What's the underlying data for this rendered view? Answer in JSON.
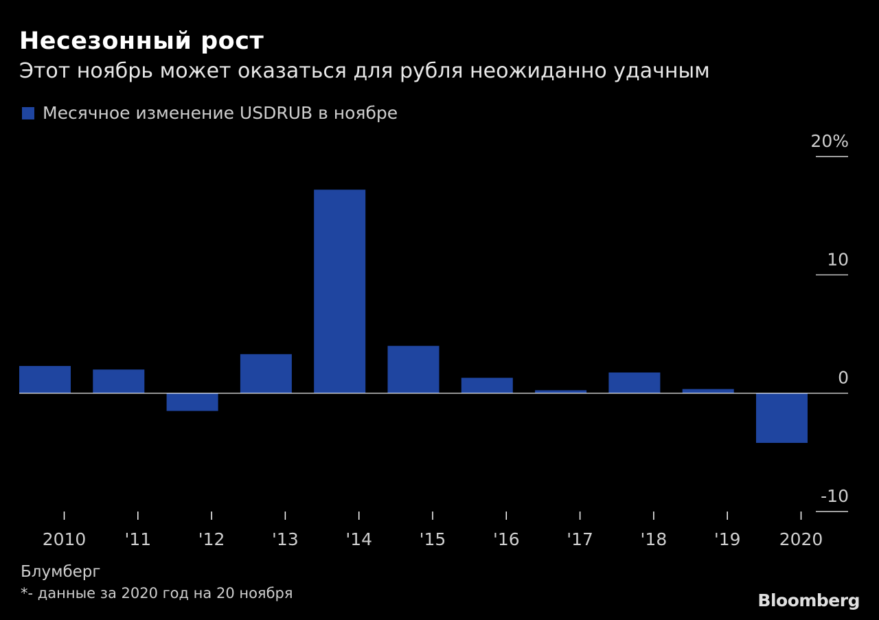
{
  "chart_data": {
    "type": "bar",
    "title": "Несезонный рост",
    "subtitle": "Этот ноябрь может оказаться для рубля неожиданно удачным",
    "legend": "Месячное изменение USDRUB в ноябре",
    "categories": [
      "2010",
      "'11",
      "'12",
      "'13",
      "'14",
      "'15",
      "'16",
      "'17",
      "'18",
      "'19",
      "2020"
    ],
    "series": [
      {
        "name": "Месячное изменение USDRUB в ноябре",
        "values": [
          2.3,
          2.0,
          -1.5,
          3.3,
          17.2,
          4.0,
          1.3,
          0.25,
          1.75,
          0.35,
          -4.2
        ]
      }
    ],
    "ylim": [
      -10,
      20
    ],
    "yticks": [
      {
        "value": 20,
        "label": "20%"
      },
      {
        "value": 10,
        "label": "10"
      },
      {
        "value": 0,
        "label": "0"
      },
      {
        "value": -10,
        "label": "-10"
      }
    ],
    "bar_color": "#1f45a0",
    "grid": false
  },
  "footer": {
    "source": "Блумберг",
    "note": "*- данные за 2020 год на 20 ноября",
    "brand": "Bloomberg"
  }
}
